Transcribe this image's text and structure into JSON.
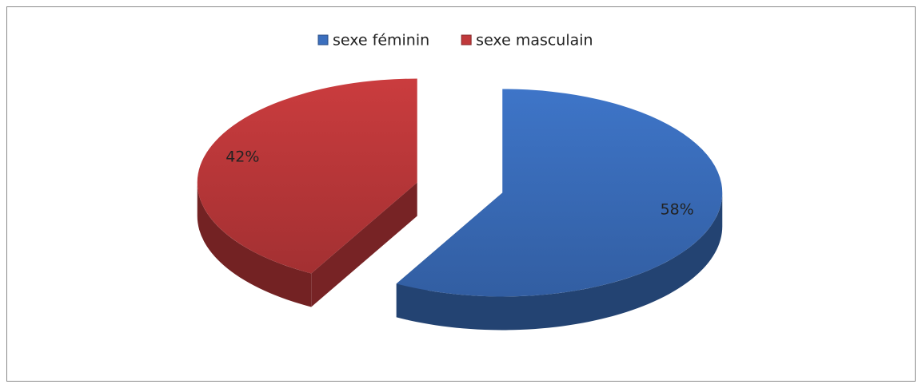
{
  "chart_data": {
    "type": "pie",
    "categories": [
      "sexe féminin",
      "sexe masculain"
    ],
    "values": [
      58,
      42
    ],
    "value_labels": [
      "58%",
      "42%"
    ],
    "colors": [
      "#3b6fbe",
      "#c0393b"
    ],
    "legend": "top"
  }
}
